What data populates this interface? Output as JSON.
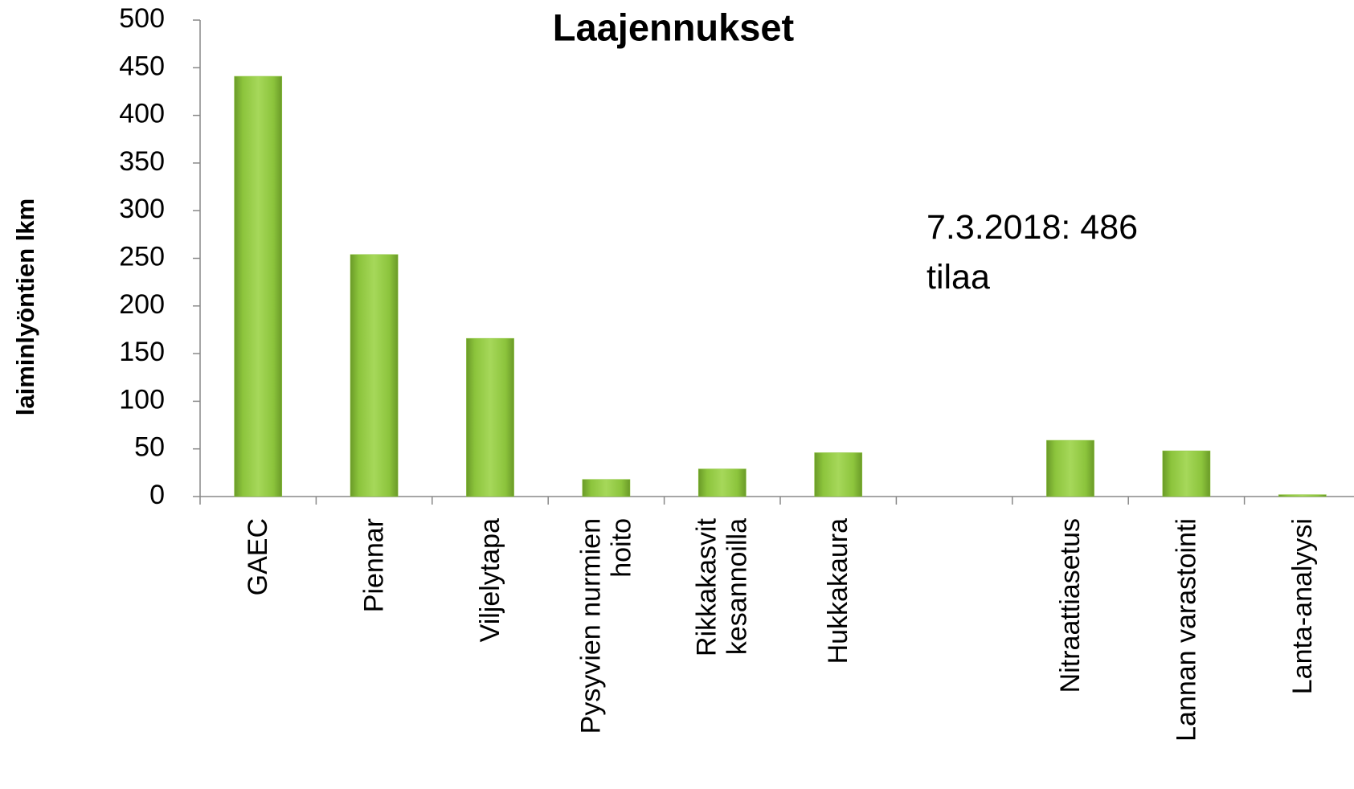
{
  "chart_data": {
    "type": "bar",
    "title": "Laajennukset",
    "y_label": "laiminlyöntien lkm",
    "annotation": "7.3.2018: 486 tilaa",
    "categories": [
      "GAEC",
      "Piennar",
      "Viljelytapa",
      "Pysyvien nurmien hoito",
      "Rikkakasvit kesannoilla",
      "Hukkakaura",
      null,
      "Nitraattiasetus",
      "Lannan varastointi",
      "Lanta-analyysi"
    ],
    "values": [
      441,
      254,
      166,
      18,
      29,
      46,
      null,
      59,
      48,
      2
    ],
    "color": "#8cc43c",
    "ylim": [
      0,
      500
    ],
    "yticks": [
      0,
      50,
      100,
      150,
      200,
      250,
      300,
      350,
      400,
      450,
      500
    ],
    "grid": false
  }
}
